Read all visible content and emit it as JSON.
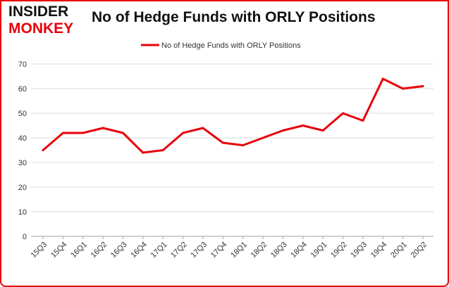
{
  "logo": {
    "line1": "INSIDER",
    "line2": "MONKEY"
  },
  "chart_data": {
    "type": "line",
    "title": "No of Hedge Funds with ORLY Positions",
    "xlabel": "",
    "ylabel": "",
    "categories": [
      "15Q3",
      "15Q4",
      "16Q1",
      "16Q2",
      "16Q3",
      "16Q4",
      "17Q1",
      "17Q2",
      "17Q3",
      "17Q4",
      "18Q1",
      "18Q2",
      "18Q3",
      "18Q4",
      "19Q1",
      "19Q2",
      "19Q3",
      "19Q4",
      "20Q1",
      "20Q2"
    ],
    "series": [
      {
        "name": "No of Hedge Funds with ORLY Positions",
        "values": [
          35,
          42,
          42,
          44,
          42,
          34,
          35,
          42,
          44,
          38,
          37,
          40,
          43,
          45,
          43,
          50,
          47,
          64,
          60,
          61
        ],
        "color": "#e8000b"
      }
    ],
    "ylim": [
      0,
      70
    ],
    "yticks": [
      0,
      10,
      20,
      30,
      40,
      50,
      60,
      70
    ],
    "grid": true,
    "legend_position": "top-center"
  }
}
